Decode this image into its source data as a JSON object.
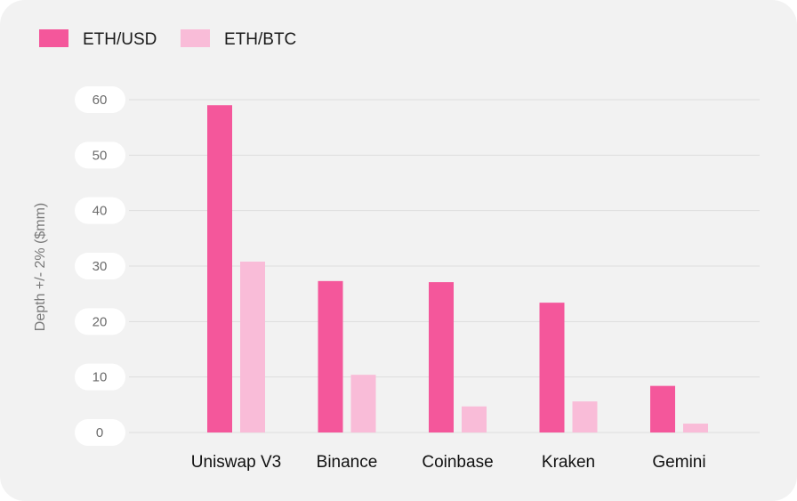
{
  "chart_data": {
    "type": "bar",
    "categories": [
      "Uniswap V3",
      "Binance",
      "Coinbase",
      "Kraken",
      "Gemini"
    ],
    "series": [
      {
        "name": "ETH/USD",
        "values": [
          59,
          27.3,
          27.1,
          23.4,
          8.4
        ],
        "color": "#f4579b"
      },
      {
        "name": "ETH/BTC",
        "values": [
          30.8,
          10.4,
          4.7,
          5.6,
          1.6
        ],
        "color": "#f9bcd8"
      }
    ],
    "ylabel": "Depth +/- 2% ($mm)",
    "xlabel": "",
    "ylim": [
      0,
      60
    ],
    "yticks": [
      0,
      10,
      20,
      30,
      40,
      50,
      60
    ],
    "grid": true,
    "legend": "top-left"
  }
}
